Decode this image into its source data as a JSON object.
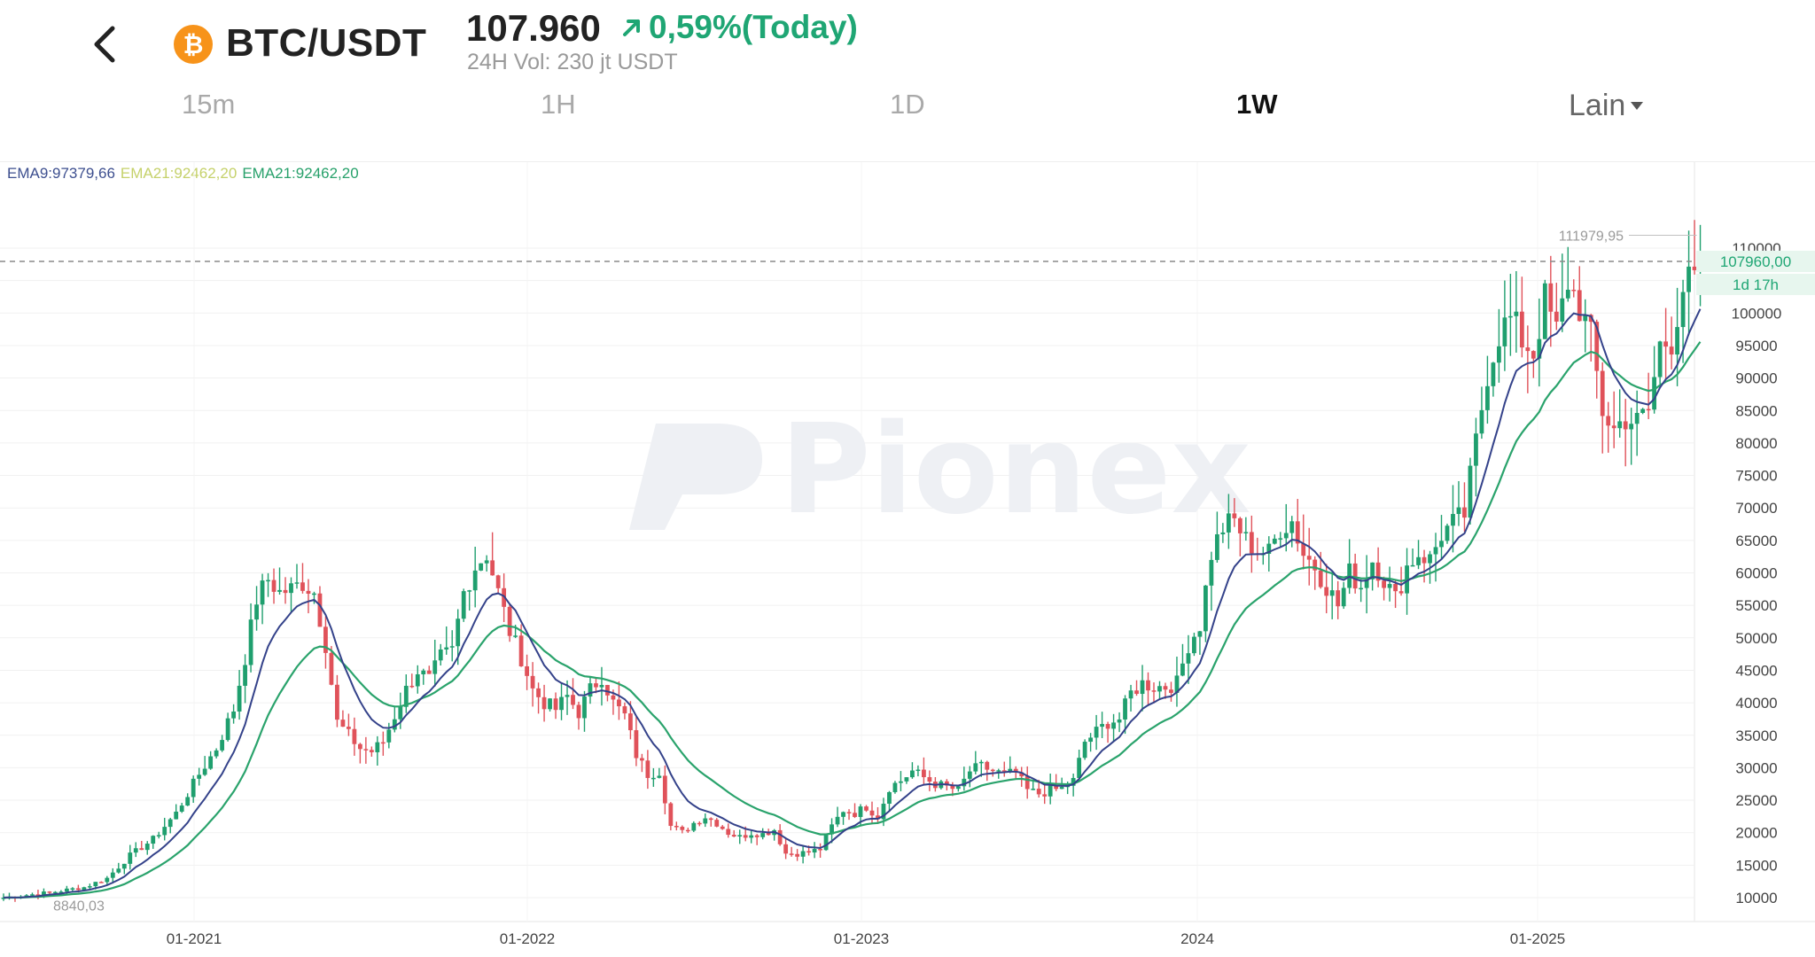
{
  "header": {
    "pair": "BTC/USDT",
    "coin_symbol": "₿",
    "price": "107.960",
    "change": "0,59%(Today)",
    "volume": "24H Vol: 230 jt USDT"
  },
  "tabs": [
    {
      "label": "15m",
      "active": false
    },
    {
      "label": "1H",
      "active": false
    },
    {
      "label": "1D",
      "active": false
    },
    {
      "label": "1W",
      "active": true
    }
  ],
  "more_tab": "Lain",
  "ema_legend": [
    {
      "label": "EMA9:97379,66",
      "color": "#3d4f8f"
    },
    {
      "label": "EMA21:92462,20",
      "color": "#c5d16a"
    },
    {
      "label": "EMA21:92462,20",
      "color": "#28a16b"
    }
  ],
  "watermark": "Pionex",
  "chart_data": {
    "type": "candlestick",
    "y_ticks": [
      "10000",
      "15000",
      "20000",
      "25000",
      "30000",
      "35000",
      "40000",
      "45000",
      "50000",
      "55000",
      "60000",
      "65000",
      "70000",
      "75000",
      "80000",
      "85000",
      "90000",
      "95000",
      "100000",
      "105000",
      "110000"
    ],
    "x_ticks": [
      "01-2021",
      "01-2022",
      "01-2023",
      "2024",
      "01-2025"
    ],
    "ylim": [
      8840,
      112000
    ],
    "current_price_label": "107960,00",
    "countdown_label": "1d 17h",
    "high_label": "111979,95",
    "low_label": "8840,03",
    "close_anchors": [
      [
        0,
        10000
      ],
      [
        8,
        10800
      ],
      [
        14,
        11600
      ],
      [
        18,
        13000
      ],
      [
        22,
        16500
      ],
      [
        26,
        19000
      ],
      [
        30,
        23000
      ],
      [
        34,
        29000
      ],
      [
        37,
        33000
      ],
      [
        40,
        39000
      ],
      [
        42,
        47000
      ],
      [
        44,
        56000
      ],
      [
        46,
        59000
      ],
      [
        48,
        57000
      ],
      [
        50,
        57500
      ],
      [
        52,
        58500
      ],
      [
        54,
        57000
      ],
      [
        56,
        49000
      ],
      [
        58,
        37000
      ],
      [
        60,
        35000
      ],
      [
        62,
        33000
      ],
      [
        64,
        32500
      ],
      [
        66,
        34000
      ],
      [
        68,
        38000
      ],
      [
        70,
        42000
      ],
      [
        72,
        45000
      ],
      [
        74,
        43500
      ],
      [
        76,
        47000
      ],
      [
        78,
        48000
      ],
      [
        80,
        57000
      ],
      [
        82,
        61000
      ],
      [
        84,
        63000
      ],
      [
        86,
        57000
      ],
      [
        88,
        51000
      ],
      [
        90,
        47000
      ],
      [
        92,
        42000
      ],
      [
        94,
        40000
      ],
      [
        96,
        39000
      ],
      [
        98,
        41000
      ],
      [
        100,
        38500
      ],
      [
        102,
        42000
      ],
      [
        104,
        44000
      ],
      [
        106,
        40000
      ],
      [
        108,
        38000
      ],
      [
        110,
        32000
      ],
      [
        112,
        29000
      ],
      [
        114,
        29500
      ],
      [
        116,
        21000
      ],
      [
        118,
        20000
      ],
      [
        120,
        21500
      ],
      [
        122,
        22500
      ],
      [
        124,
        21500
      ],
      [
        126,
        20000
      ],
      [
        128,
        19300
      ],
      [
        130,
        20000
      ],
      [
        132,
        19800
      ],
      [
        134,
        20500
      ],
      [
        136,
        16800
      ],
      [
        138,
        16800
      ],
      [
        140,
        17000
      ],
      [
        142,
        17500
      ],
      [
        144,
        21000
      ],
      [
        146,
        23500
      ],
      [
        148,
        23000
      ],
      [
        150,
        24000
      ],
      [
        152,
        22500
      ],
      [
        154,
        27000
      ],
      [
        156,
        28000
      ],
      [
        158,
        29500
      ],
      [
        160,
        28500
      ],
      [
        162,
        27500
      ],
      [
        164,
        27000
      ],
      [
        166,
        26500
      ],
      [
        168,
        29500
      ],
      [
        170,
        30200
      ],
      [
        172,
        29500
      ],
      [
        174,
        29000
      ],
      [
        176,
        29200
      ],
      [
        178,
        26500
      ],
      [
        180,
        26000
      ],
      [
        182,
        26500
      ],
      [
        184,
        26800
      ],
      [
        186,
        28000
      ],
      [
        188,
        34000
      ],
      [
        190,
        35500
      ],
      [
        192,
        37000
      ],
      [
        194,
        37500
      ],
      [
        196,
        41500
      ],
      [
        198,
        43000
      ],
      [
        200,
        42500
      ],
      [
        202,
        42500
      ],
      [
        204,
        43000
      ],
      [
        206,
        49000
      ],
      [
        208,
        52000
      ],
      [
        210,
        63000
      ],
      [
        212,
        67000
      ],
      [
        214,
        68000
      ],
      [
        216,
        65000
      ],
      [
        218,
        63500
      ],
      [
        220,
        63000
      ],
      [
        222,
        67000
      ],
      [
        224,
        68000
      ],
      [
        226,
        63000
      ],
      [
        228,
        61000
      ],
      [
        230,
        58000
      ],
      [
        232,
        55000
      ],
      [
        234,
        60000
      ],
      [
        236,
        58000
      ],
      [
        238,
        62000
      ],
      [
        240,
        59000
      ],
      [
        242,
        56000
      ],
      [
        244,
        61000
      ],
      [
        246,
        63000
      ],
      [
        248,
        62000
      ],
      [
        250,
        66000
      ],
      [
        252,
        67500
      ],
      [
        254,
        69000
      ],
      [
        256,
        80000
      ],
      [
        258,
        91000
      ],
      [
        260,
        97000
      ],
      [
        262,
        99000
      ],
      [
        264,
        96000
      ],
      [
        266,
        94000
      ],
      [
        268,
        102000
      ],
      [
        270,
        97000
      ],
      [
        272,
        105000
      ],
      [
        274,
        101000
      ],
      [
        276,
        96000
      ],
      [
        278,
        85000
      ],
      [
        280,
        82000
      ],
      [
        282,
        84000
      ],
      [
        284,
        83000
      ],
      [
        286,
        85000
      ],
      [
        288,
        95000
      ],
      [
        290,
        96000
      ],
      [
        292,
        104000
      ],
      [
        294,
        105000
      ],
      [
        295,
        107960
      ]
    ],
    "ema9_end": 97379.66,
    "ema21_end": 92462.2
  }
}
